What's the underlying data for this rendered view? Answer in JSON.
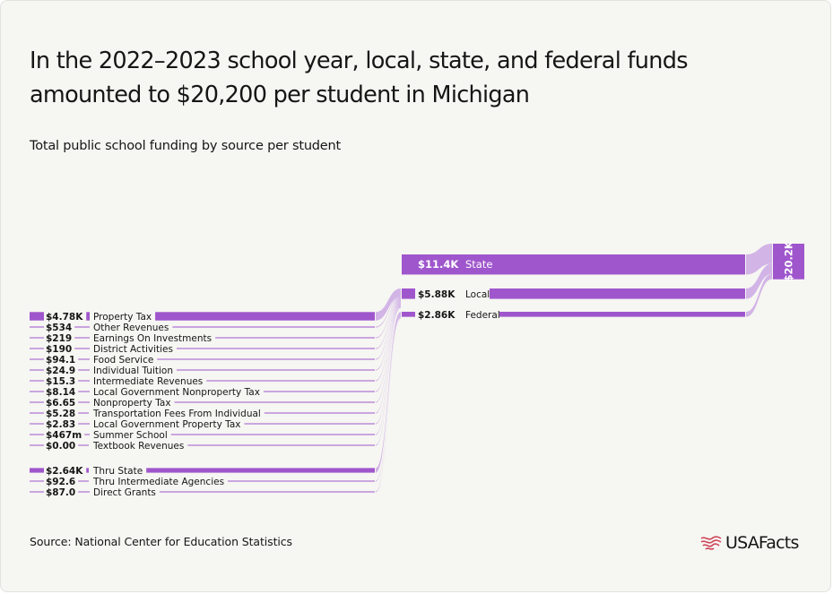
{
  "title": "In the 2022–2023 school year, local, state, and federal funds amounted to $20,200 per student in Michigan",
  "subtitle": "Total public school funding by source per student",
  "source": "Source: National Center for Education Statistics",
  "logo_text": "USAFacts",
  "colors": {
    "accent": "#9f56cc",
    "flow": "#d2b4e7",
    "text": "#161616",
    "logo_flag": "#d0465a"
  },
  "chart_data": {
    "type": "sankey",
    "unit": "dollars per student",
    "total": {
      "value": 20200,
      "label": "$20.2K"
    },
    "sources": [
      {
        "name": "State",
        "value": 11400,
        "label": "$11.4K"
      },
      {
        "name": "Local",
        "value": 5880,
        "label": "$5.88K"
      },
      {
        "name": "Federal",
        "value": 2860,
        "label": "$2.86K"
      }
    ],
    "details": [
      {
        "name": "Property Tax",
        "value": 4780,
        "label": "$4.78K",
        "target": "Local"
      },
      {
        "name": "Other Revenues",
        "value": 534,
        "label": "$534",
        "target": "Local"
      },
      {
        "name": "Earnings On Investments",
        "value": 219,
        "label": "$219",
        "target": "Local"
      },
      {
        "name": "District Activities",
        "value": 190,
        "label": "$190",
        "target": "Local"
      },
      {
        "name": "Food Service",
        "value": 94.1,
        "label": "$94.1",
        "target": "Local"
      },
      {
        "name": "Individual Tuition",
        "value": 24.9,
        "label": "$24.9",
        "target": "Local"
      },
      {
        "name": "Intermediate Revenues",
        "value": 15.3,
        "label": "$15.3",
        "target": "Local"
      },
      {
        "name": "Local Government Nonproperty Tax",
        "value": 8.14,
        "label": "$8.14",
        "target": "Local"
      },
      {
        "name": "Nonproperty Tax",
        "value": 6.65,
        "label": "$6.65",
        "target": "Local"
      },
      {
        "name": "Transportation Fees From Individual",
        "value": 5.28,
        "label": "$5.28",
        "target": "Local"
      },
      {
        "name": "Local Government Property Tax",
        "value": 2.83,
        "label": "$2.83",
        "target": "Local"
      },
      {
        "name": "Summer School",
        "value": 0.467,
        "label": "$467m",
        "target": "Local"
      },
      {
        "name": "Textbook Revenues",
        "value": 0,
        "label": "$0.00",
        "target": "Local"
      },
      {
        "name": "Thru State",
        "value": 2640,
        "label": "$2.64K",
        "target": "Federal"
      },
      {
        "name": "Thru Intermediate Agencies",
        "value": 92.6,
        "label": "$92.6",
        "target": "Federal"
      },
      {
        "name": "Direct Grants",
        "value": 87.0,
        "label": "$87.0",
        "target": "Federal"
      }
    ]
  }
}
